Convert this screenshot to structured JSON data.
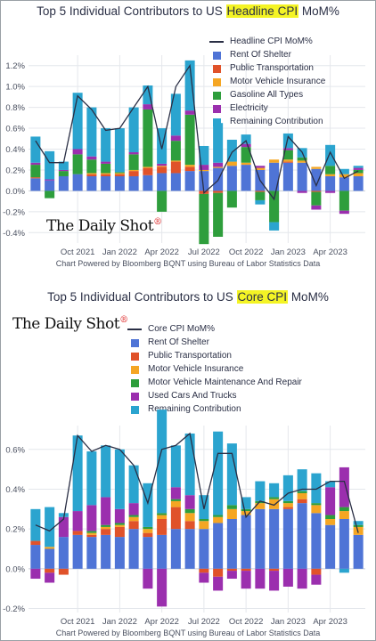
{
  "chart_data": [
    {
      "type": "bar",
      "title_before": "Top 5 Individual Contributors to US ",
      "title_highlight": "Headline CPI",
      "title_after": " MoM%",
      "y_unit": "%",
      "ylim": [
        -0.5,
        1.3
      ],
      "y_ticks": [
        "1.2%",
        "1.0%",
        "0.8%",
        "0.6%",
        "0.4%",
        "0.2%",
        "0.0%",
        "-0.2%",
        "-0.4%"
      ],
      "y_tick_values": [
        1.2,
        1.0,
        0.8,
        0.6,
        0.4,
        0.2,
        0.0,
        -0.2,
        -0.4
      ],
      "x_tick_labels": [
        "Oct 2021",
        "Jan 2022",
        "Apr 2022",
        "Jul 2022",
        "Oct 2022",
        "Jan 2023",
        "Apr 2023"
      ],
      "x_tick_index": [
        3,
        6,
        9,
        12,
        15,
        18,
        21
      ],
      "categories": [
        "Jul 2021",
        "Aug 2021",
        "Sep 2021",
        "Oct 2021",
        "Nov 2021",
        "Dec 2021",
        "Jan 2022",
        "Feb 2022",
        "Mar 2022",
        "Apr 2022",
        "May 2022",
        "Jun 2022",
        "Jul 2022",
        "Aug 2022",
        "Sep 2022",
        "Oct 2022",
        "Nov 2022",
        "Dec 2022",
        "Jan 2023",
        "Feb 2023",
        "Mar 2023",
        "Apr 2023",
        "May 2023",
        "Jun 2023"
      ],
      "line": {
        "name": "Headline CPI MoM%",
        "values": [
          0.48,
          0.27,
          0.27,
          0.91,
          0.78,
          0.58,
          0.6,
          0.8,
          1.0,
          0.4,
          1.0,
          1.2,
          -0.02,
          0.1,
          0.37,
          0.48,
          0.1,
          -0.08,
          0.52,
          0.37,
          0.05,
          0.37,
          0.12,
          0.19
        ]
      },
      "series": [
        {
          "name": "Rent Of Shelter",
          "color": "#4f74d6",
          "values": [
            0.12,
            0.1,
            0.14,
            0.16,
            0.14,
            0.14,
            0.14,
            0.14,
            0.15,
            0.17,
            0.17,
            0.19,
            0.19,
            0.22,
            0.24,
            0.25,
            0.2,
            0.27,
            0.27,
            0.27,
            0.21,
            0.14,
            0.13,
            0.14
          ]
        },
        {
          "name": "Public Transportation",
          "color": "#e0522a",
          "values": [
            0.01,
            0.0,
            0.0,
            0.0,
            0.02,
            0.02,
            0.02,
            0.05,
            0.07,
            0.06,
            0.11,
            0.04,
            -0.03,
            -0.02,
            0.0,
            0.0,
            -0.01,
            0.0,
            0.01,
            0.0,
            -0.01,
            0.0,
            0.0,
            0.0
          ]
        },
        {
          "name": "Motor Vehicle Insurance",
          "color": "#f5a623",
          "values": [
            0.0,
            0.0,
            0.0,
            0.0,
            0.01,
            0.01,
            0.01,
            0.01,
            0.01,
            0.01,
            0.01,
            0.02,
            0.01,
            0.01,
            0.04,
            0.02,
            0.02,
            0.03,
            0.02,
            0.02,
            0.02,
            0.02,
            0.03,
            0.03
          ]
        },
        {
          "name": "Gasoline All Types",
          "color": "#2e9e3c",
          "values": [
            0.12,
            -0.07,
            0.05,
            0.19,
            0.13,
            0.09,
            0.01,
            0.15,
            0.55,
            -0.2,
            0.19,
            0.48,
            -0.48,
            -0.42,
            -0.16,
            0.15,
            -0.08,
            -0.3,
            0.09,
            0.03,
            -0.13,
            0.08,
            -0.19,
            0.03
          ]
        },
        {
          "name": "Electricity",
          "color": "#9b2fae",
          "values": [
            0.02,
            0.01,
            0.01,
            0.05,
            0.03,
            0.02,
            0.0,
            0.02,
            0.05,
            0.02,
            0.05,
            0.04,
            0.05,
            0.04,
            0.0,
            0.03,
            0.02,
            0.0,
            0.02,
            -0.02,
            -0.04,
            -0.02,
            -0.03,
            0.02
          ]
        },
        {
          "name": "Remaining Contribution",
          "color": "#2ba4cf",
          "values": [
            0.25,
            0.27,
            0.08,
            0.54,
            0.47,
            0.32,
            0.42,
            0.43,
            0.18,
            0.34,
            0.4,
            0.48,
            0.18,
            0.38,
            0.21,
            0.09,
            -0.04,
            -0.08,
            0.14,
            0.09,
            0.0,
            0.2,
            0.05,
            0.02
          ]
        }
      ]
    },
    {
      "type": "bar",
      "title_before": "Top 5 Individual Contributors to US ",
      "title_highlight": "Core CPI",
      "title_after": " MoM%",
      "y_unit": "%",
      "ylim": [
        -0.22,
        0.72
      ],
      "y_ticks": [
        "0.6%",
        "0.4%",
        "0.2%",
        "0.0%",
        "-0.2%"
      ],
      "y_tick_values": [
        0.6,
        0.4,
        0.2,
        0.0,
        -0.2
      ],
      "x_tick_labels": [
        "Oct 2021",
        "Jan 2022",
        "Apr 2022",
        "Jul 2022",
        "Oct 2022",
        "Jan 2023",
        "Apr 2023"
      ],
      "x_tick_index": [
        3,
        6,
        9,
        12,
        15,
        18,
        21
      ],
      "categories": [
        "Jul 2021",
        "Aug 2021",
        "Sep 2021",
        "Oct 2021",
        "Nov 2021",
        "Dec 2021",
        "Jan 2022",
        "Feb 2022",
        "Mar 2022",
        "Apr 2022",
        "May 2022",
        "Jun 2022",
        "Jul 2022",
        "Aug 2022",
        "Sep 2022",
        "Oct 2022",
        "Nov 2022",
        "Dec 2022",
        "Jan 2023",
        "Feb 2023",
        "Mar 2023",
        "Apr 2023",
        "May 2023",
        "Jun 2023"
      ],
      "line": {
        "name": "Core CPI MoM%",
        "values": [
          0.22,
          0.19,
          0.25,
          0.67,
          0.59,
          0.62,
          0.6,
          0.52,
          0.33,
          0.6,
          0.62,
          0.68,
          0.3,
          0.58,
          0.58,
          0.26,
          0.34,
          0.32,
          0.38,
          0.4,
          0.4,
          0.44,
          0.44,
          0.18
        ]
      },
      "series": [
        {
          "name": "Rent Of Shelter",
          "color": "#4f74d6",
          "values": [
            0.12,
            0.1,
            0.16,
            0.17,
            0.16,
            0.17,
            0.16,
            0.2,
            0.16,
            0.17,
            0.2,
            0.2,
            0.2,
            0.23,
            0.25,
            0.27,
            0.3,
            0.3,
            0.3,
            0.33,
            0.28,
            0.22,
            0.25,
            0.17
          ]
        },
        {
          "name": "Public Transportation",
          "color": "#e0522a",
          "values": [
            0.02,
            -0.02,
            -0.03,
            0.02,
            0.01,
            0.03,
            0.05,
            0.04,
            0.02,
            0.08,
            0.11,
            0.04,
            -0.02,
            -0.04,
            -0.01,
            -0.01,
            0.0,
            -0.01,
            0.01,
            0.02,
            -0.03,
            0.0,
            0.0,
            0.0
          ]
        },
        {
          "name": "Motor Vehicle Insurance",
          "color": "#f5a623",
          "values": [
            0.0,
            0.01,
            0.0,
            0.0,
            0.01,
            0.01,
            0.01,
            0.02,
            0.02,
            0.02,
            0.03,
            0.04,
            0.04,
            0.03,
            0.05,
            0.02,
            0.03,
            0.05,
            0.02,
            0.03,
            0.04,
            0.03,
            0.04,
            0.04
          ]
        },
        {
          "name": "Motor Vehicle Maintenance And Repair",
          "color": "#2e9e3c",
          "values": [
            0.0,
            0.0,
            0.0,
            0.0,
            0.01,
            0.01,
            0.01,
            0.01,
            0.01,
            0.01,
            0.01,
            0.02,
            0.01,
            0.01,
            0.02,
            0.01,
            0.01,
            0.01,
            0.01,
            0.01,
            0.01,
            0.02,
            0.02,
            0.01
          ]
        },
        {
          "name": "Used Cars And Trucks",
          "color": "#9b2fae",
          "values": [
            -0.05,
            -0.05,
            0.1,
            0.1,
            0.13,
            0.14,
            0.07,
            0.06,
            -0.1,
            -0.19,
            0.06,
            0.07,
            -0.05,
            -0.07,
            -0.04,
            -0.09,
            -0.1,
            -0.1,
            -0.09,
            -0.1,
            -0.05,
            0.14,
            0.2,
            0.0
          ]
        },
        {
          "name": "Remaining Contribution",
          "color": "#2ba4cf",
          "values": [
            0.16,
            0.2,
            0.02,
            0.38,
            0.27,
            0.26,
            0.3,
            0.19,
            0.22,
            0.52,
            0.21,
            0.31,
            0.12,
            0.42,
            0.31,
            0.06,
            0.1,
            0.07,
            0.13,
            0.11,
            0.15,
            0.03,
            -0.02,
            0.02
          ]
        }
      ]
    }
  ],
  "legend1": [
    {
      "kind": "line",
      "label": "Headline CPI MoM%",
      "color": "#2a2f45"
    },
    {
      "kind": "box",
      "label": "Rent Of Shelter",
      "color": "#4f74d6"
    },
    {
      "kind": "box",
      "label": "Public Transportation",
      "color": "#e0522a"
    },
    {
      "kind": "box",
      "label": "Motor Vehicle Insurance",
      "color": "#f5a623"
    },
    {
      "kind": "box",
      "label": "Gasoline All Types",
      "color": "#2e9e3c"
    },
    {
      "kind": "box",
      "label": "Electricity",
      "color": "#9b2fae"
    },
    {
      "kind": "box",
      "label": "Remaining Contribution",
      "color": "#2ba4cf"
    }
  ],
  "legend2": [
    {
      "kind": "line",
      "label": "Core CPI MoM%",
      "color": "#2a2f45"
    },
    {
      "kind": "box",
      "label": "Rent Of Shelter",
      "color": "#4f74d6"
    },
    {
      "kind": "box",
      "label": "Public Transportation",
      "color": "#e0522a"
    },
    {
      "kind": "box",
      "label": "Motor Vehicle Insurance",
      "color": "#f5a623"
    },
    {
      "kind": "box",
      "label": "Motor Vehicle Maintenance And Repair",
      "color": "#2e9e3c"
    },
    {
      "kind": "box",
      "label": "Used Cars And Trucks",
      "color": "#9b2fae"
    },
    {
      "kind": "box",
      "label": "Remaining Contribution",
      "color": "#2ba4cf"
    }
  ],
  "source": "Chart Powered by Bloomberg BQNT using Bureau of Labor Statistics Data",
  "brand": {
    "text": "The Daily Shot",
    "mark": "®"
  },
  "colors": {
    "line": "#2a2f45",
    "grid": "#e4e7ec",
    "highlight": "#f4f425"
  }
}
